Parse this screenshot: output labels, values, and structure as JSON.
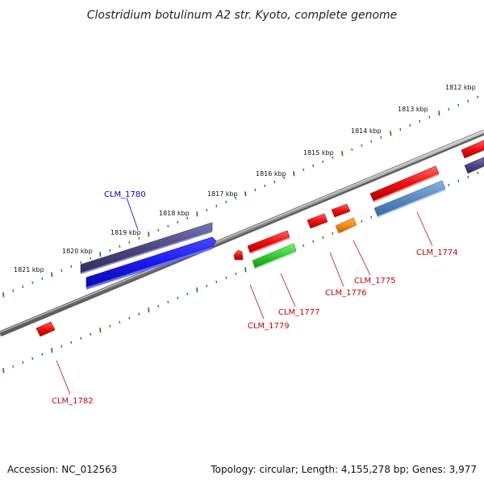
{
  "title": "Clostridium botulinum A2 str. Kyoto, complete genome",
  "footer": {
    "accession": "Accession: NC_012563",
    "topology": "Topology: circular; Length: 4,155,278 bp; Genes: 3,977"
  },
  "colors": {
    "backbone": "#8a8a8a",
    "tick": "#1a7a1a",
    "label_red": "#cc0000",
    "label_blue": "#0000cc",
    "gene_red": "#ee1111",
    "gene_blue": "#1a1aee",
    "gene_purple": "#4a4880",
    "gene_green": "#33cc33",
    "gene_orange": "#f08c1a",
    "gene_steel": "#5a8ac0"
  },
  "scale_labels": [
    "1812 kbp",
    "1813 kbp",
    "1814 kbp",
    "1815 kbp",
    "1816 kbp",
    "1817 kbp",
    "1818 kbp",
    "1819 kbp",
    "1820 kbp",
    "1821 kbp"
  ],
  "gene_labels": {
    "clm_1780": "CLM_1780",
    "clm_1774": "CLM_1774",
    "clm_1775": "CLM_1775",
    "clm_1776": "CLM_1776",
    "clm_1777": "CLM_1777",
    "clm_1779": "CLM_1779",
    "clm_1782": "CLM_1782"
  }
}
